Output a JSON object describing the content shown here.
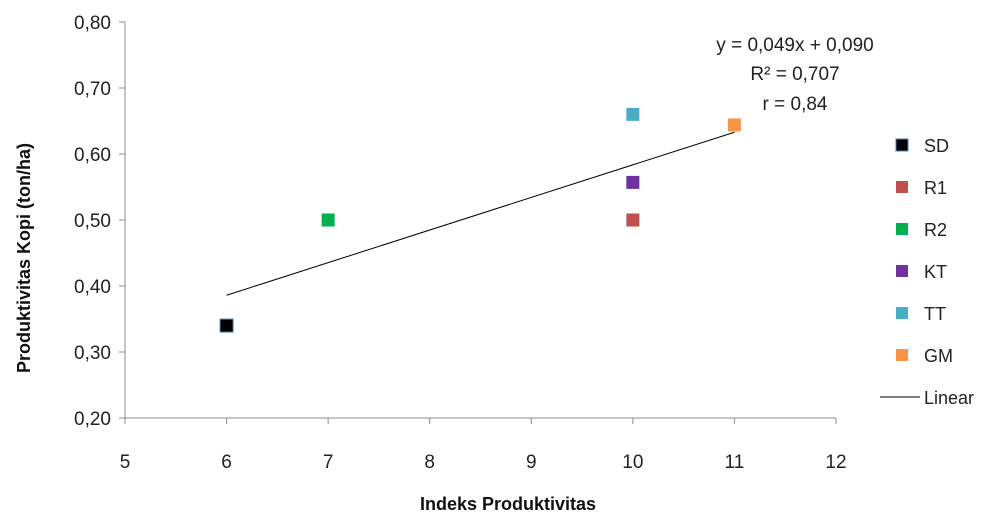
{
  "chart_data": {
    "type": "scatter",
    "xlabel": "Indeks Produktivitas",
    "ylabel": "Produktivitas Kopi (ton/ha)",
    "xlim": [
      5,
      12
    ],
    "ylim": [
      0.2,
      0.8
    ],
    "xticks": [
      "5",
      "6",
      "7",
      "8",
      "9",
      "10",
      "11",
      "12"
    ],
    "yticks": [
      "0,20",
      "0,30",
      "0,40",
      "0,50",
      "0,60",
      "0,70",
      "0,80"
    ],
    "grid": false,
    "legend_position": "right",
    "series": [
      {
        "name": "SD",
        "color": "#000000",
        "points": [
          {
            "x": 6,
            "y": 0.34
          }
        ]
      },
      {
        "name": "R1",
        "color": "#c0504d",
        "points": [
          {
            "x": 10,
            "y": 0.5
          }
        ]
      },
      {
        "name": "R2",
        "color": "#00b050",
        "points": [
          {
            "x": 7,
            "y": 0.5
          }
        ]
      },
      {
        "name": "KT",
        "color": "#7030a0",
        "points": [
          {
            "x": 10,
            "y": 0.557
          }
        ]
      },
      {
        "name": "TT",
        "color": "#4bacc6",
        "points": [
          {
            "x": 10,
            "y": 0.66
          }
        ]
      },
      {
        "name": "GM",
        "color": "#f79646",
        "points": [
          {
            "x": 11,
            "y": 0.644
          }
        ]
      }
    ],
    "trendline": {
      "name": "Linear",
      "color": "#000000",
      "x_range": [
        6,
        11
      ],
      "y_start": 0.386,
      "y_end": 0.633
    },
    "annotations": [
      "y = 0,049x + 0,090",
      "R² = 0,707",
      "r = 0,84"
    ]
  }
}
